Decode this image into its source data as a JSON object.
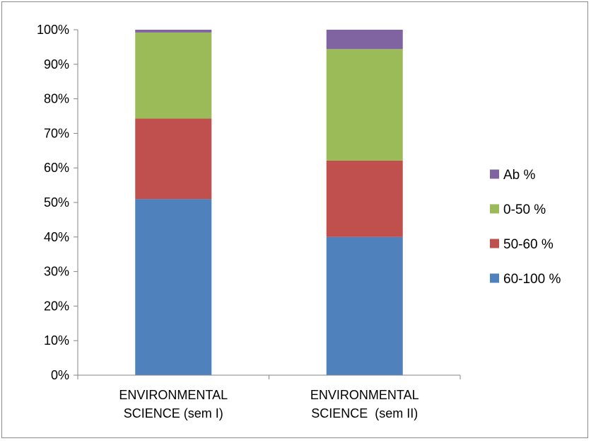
{
  "chart_data": {
    "type": "bar",
    "stacked": true,
    "percent_stacked": true,
    "categories": [
      [
        "ENVIRONMENTAL",
        "SCIENCE (sem I)"
      ],
      [
        "ENVIRONMENTAL",
        "SCIENCE  (sem II)"
      ]
    ],
    "series": [
      {
        "name": "60-100 %",
        "color": "#4F81BD",
        "values": [
          51,
          40
        ]
      },
      {
        "name": "50-60 %",
        "color": "#C0504D",
        "values": [
          23.3,
          22.1
        ]
      },
      {
        "name": "0-50 %",
        "color": "#9BBB59",
        "values": [
          24.9,
          32.3
        ]
      },
      {
        "name": "Ab %",
        "color": "#8064A2",
        "values": [
          0.8,
          5.6
        ]
      }
    ],
    "yticks": [
      "0%",
      "10%",
      "20%",
      "30%",
      "40%",
      "50%",
      "60%",
      "70%",
      "80%",
      "90%",
      "100%"
    ],
    "ylim": [
      0,
      100
    ],
    "legend": {
      "placement": "right",
      "order": [
        "Ab %",
        "0-50 %",
        "50-60 %",
        "60-100 %"
      ]
    },
    "grid": false
  }
}
